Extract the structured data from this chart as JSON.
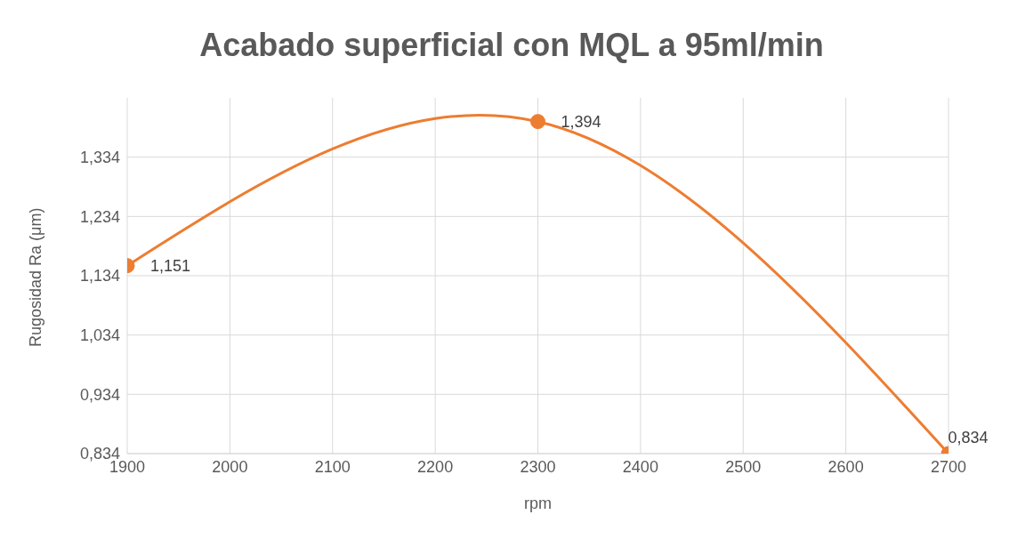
{
  "chart_data": {
    "type": "line",
    "title": "Acabado superficial con MQL a 95ml/min",
    "xlabel": "rpm",
    "ylabel": "Rugosidad Ra (μm)",
    "x": [
      1900,
      2300,
      2700
    ],
    "series": [
      {
        "color": "#ed7d31",
        "values": [
          1.151,
          1.394,
          0.834
        ],
        "value_labels": [
          "1,151",
          "1,394",
          "0,834"
        ]
      }
    ],
    "xlim": [
      1900,
      2700
    ],
    "xticks": [
      1900,
      2000,
      2100,
      2200,
      2300,
      2400,
      2500,
      2600,
      2700
    ],
    "ylim": [
      0.834,
      1.434
    ],
    "yticks": [
      {
        "value": 0.834,
        "label": "0,834"
      },
      {
        "value": 0.934,
        "label": "0,934"
      },
      {
        "value": 1.034,
        "label": "1,034"
      },
      {
        "value": 1.134,
        "label": "1,134"
      },
      {
        "value": 1.234,
        "label": "1,234"
      },
      {
        "value": 1.334,
        "label": "1,334"
      }
    ],
    "grid": true,
    "legend": false,
    "marker": "circle",
    "line_style": "solid"
  }
}
